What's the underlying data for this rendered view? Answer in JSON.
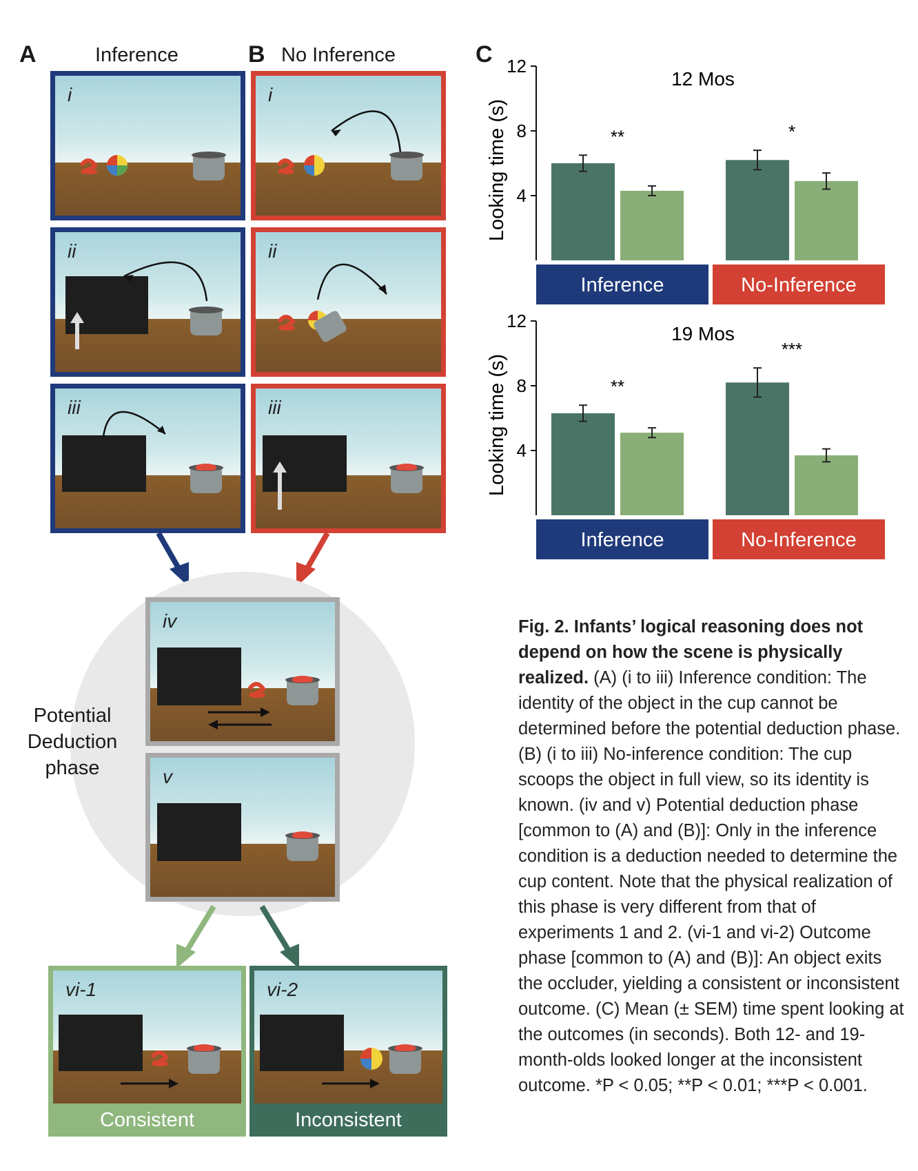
{
  "panel_a": {
    "letter": "A",
    "title": "Inference",
    "frames": [
      {
        "label": "i"
      },
      {
        "label": "ii"
      },
      {
        "label": "iii"
      }
    ]
  },
  "panel_b": {
    "letter": "B",
    "title": "No Inference",
    "frames": [
      {
        "label": "i"
      },
      {
        "label": "ii"
      },
      {
        "label": "iii"
      }
    ]
  },
  "deduction": {
    "title_lines": [
      "Potential",
      "Deduction",
      "phase"
    ],
    "frames": [
      {
        "label": "iv"
      },
      {
        "label": "v"
      }
    ]
  },
  "outcomes": [
    {
      "label": "vi-1",
      "caption": "Consistent",
      "color": "#8fb77e"
    },
    {
      "label": "vi-2",
      "caption": "Inconsistent",
      "color": "#3f6d5c"
    }
  ],
  "colors": {
    "inference": "#1f3a7a",
    "no_inference": "#d24133",
    "consistent": "#8fb77e",
    "inconsistent": "#3f6d5c",
    "deduction": "#a9a9a9"
  },
  "panel_c": {
    "letter": "C"
  },
  "chart_data": [
    {
      "type": "bar",
      "title": "12 Mos",
      "ylabel": "Looking time (s)",
      "yticks": [
        4,
        8,
        12
      ],
      "ylim": [
        0,
        12
      ],
      "groups": [
        "Inference",
        "No-Inference"
      ],
      "series": [
        {
          "values": [
            6.0,
            6.2
          ],
          "errors": [
            0.5,
            0.6
          ],
          "color": "#4a7566"
        },
        {
          "values": [
            4.3,
            4.9
          ],
          "errors": [
            0.3,
            0.5
          ],
          "color": "#8aae77"
        }
      ],
      "significance": [
        "**",
        "*"
      ]
    },
    {
      "type": "bar",
      "title": "19 Mos",
      "ylabel": "Looking time (s)",
      "yticks": [
        4,
        8,
        12
      ],
      "ylim": [
        0,
        12
      ],
      "groups": [
        "Inference",
        "No-Inference"
      ],
      "series": [
        {
          "values": [
            6.3,
            8.2
          ],
          "errors": [
            0.5,
            0.9
          ],
          "color": "#4a7566"
        },
        {
          "values": [
            5.1,
            3.7
          ],
          "errors": [
            0.3,
            0.4
          ],
          "color": "#8aae77"
        }
      ],
      "significance": [
        "**",
        "***"
      ]
    }
  ],
  "caption": {
    "head": "Fig. 2. Infants’ logical reasoning does not depend on how the scene is physically realized.",
    "body": "(A) (i to iii) Inference condition: The identity of the object in the cup cannot be determined before the potential deduction phase. (B) (i to iii) No-inference condition: The cup scoops the object in full view, so its identity is known. (iv and v) Potential deduction phase [common to (A) and (B)]: Only in the inference condition is a deduction needed to determine the cup content. Note that the physical realization of this phase is very different from that of experiments 1 and 2. (vi-1 and vi-2) Outcome phase [common to (A) and (B)]: An object exits the occluder, yielding a consistent or inconsistent outcome. (C) Mean (± SEM) time spent looking at the outcomes (in seconds). Both 12- and 19-month-olds looked longer at the inconsistent outcome. *P < 0.05; **P < 0.01; ***P < 0.001."
  }
}
